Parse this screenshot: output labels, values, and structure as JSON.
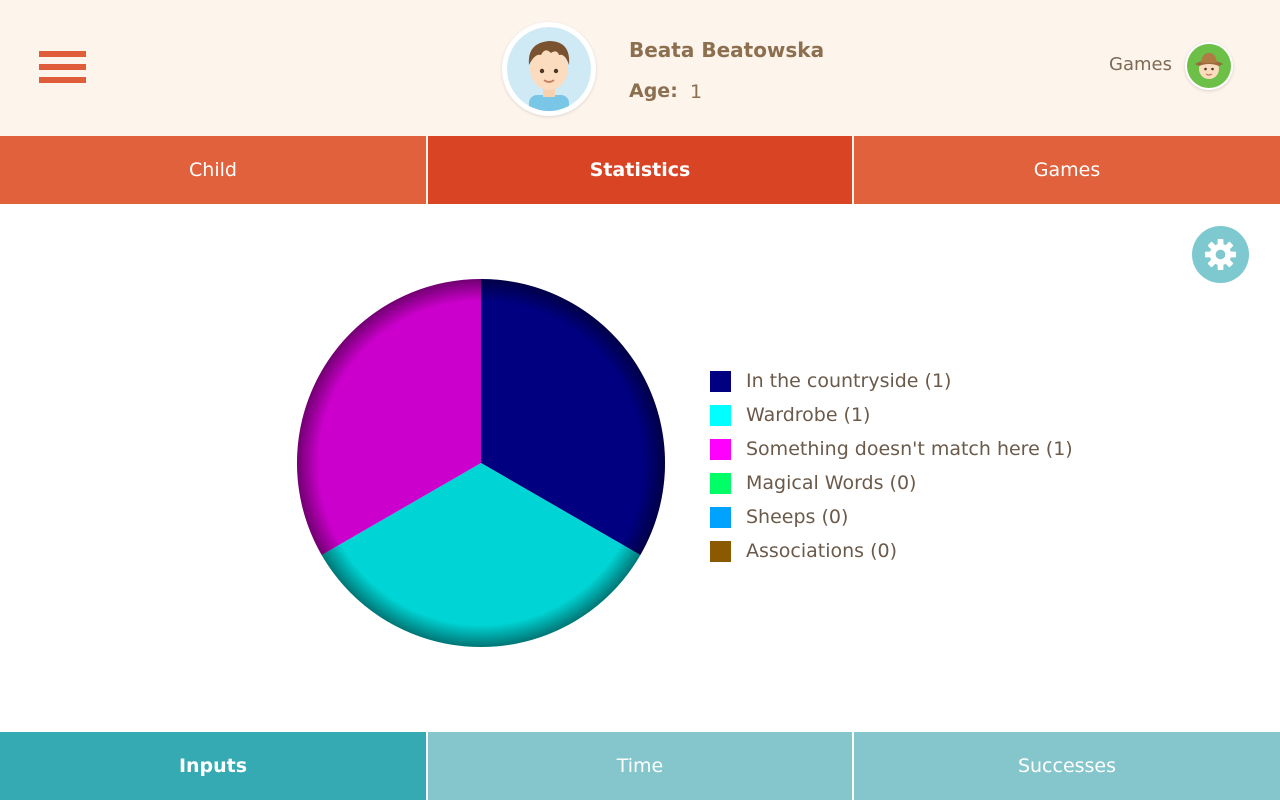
{
  "header": {
    "child_name": "Beata Beatowska",
    "age_label": "Age:",
    "age_value": "1",
    "games_link": "Games"
  },
  "tabs_top": [
    {
      "label": "Child",
      "active": false
    },
    {
      "label": "Statistics",
      "active": true
    },
    {
      "label": "Games",
      "active": false
    }
  ],
  "tabs_bottom": [
    {
      "label": "Inputs",
      "active": true
    },
    {
      "label": "Time",
      "active": false
    },
    {
      "label": "Successes",
      "active": false
    }
  ],
  "icons": {
    "menu": "hamburger-menu-icon",
    "avatar": "boy-avatar-icon",
    "games_avatar": "explorer-avatar-icon",
    "settings": "gear-icon"
  },
  "colors": {
    "header_bg": "#fdf4ec",
    "tab_top": "#e2613d",
    "tab_top_active": "#d84424",
    "tab_bottom": "#85c6cd",
    "tab_bottom_active": "#35aab3",
    "settings_bg": "#7ec8cf"
  },
  "chart_data": {
    "type": "pie",
    "series": [
      {
        "name": "In the countryside",
        "label": "In the countryside (1)",
        "value": 1,
        "color": "#000080"
      },
      {
        "name": "Wardrobe",
        "label": "Wardrobe (1)",
        "value": 1,
        "color": "#00d4d4"
      },
      {
        "name": "Something doesn't match here",
        "label": "Something doesn't match here (1)",
        "value": 1,
        "color": "#cc00cc"
      },
      {
        "name": "Magical Words",
        "label": "Magical Words (0)",
        "value": 0,
        "color": "#00ff66"
      },
      {
        "name": "Sheeps",
        "label": "Sheeps (0)",
        "value": 0,
        "color": "#00a2ff"
      },
      {
        "name": "Associations",
        "label": "Associations (0)",
        "value": 0,
        "color": "#8b5a00"
      }
    ],
    "legend_swatch_colors": [
      "#000080",
      "#00ffff",
      "#ff00ff",
      "#00ff66",
      "#00a2ff",
      "#8b5a00"
    ],
    "legend_placement": "right"
  }
}
